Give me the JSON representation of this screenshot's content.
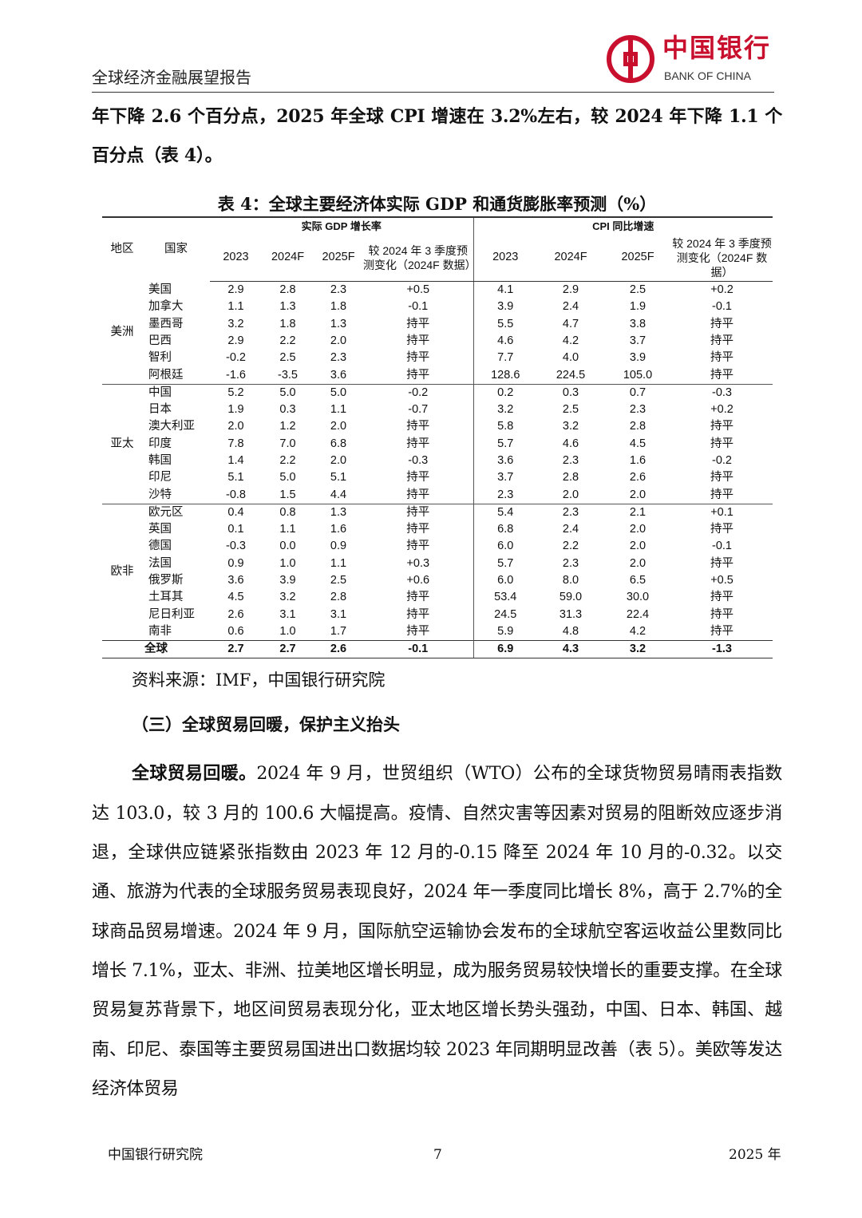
{
  "header": {
    "title": "全球经济金融展望报告",
    "logo_cn": "中国银行",
    "logo_en": "BANK OF CHINA",
    "brand_color": "#c8102e"
  },
  "intro_text": "年下降 2.6 个百分点，2025 年全球 CPI 增速在 3.2%左右，较 2024 年下降 1.1 个百分点（表 4）。",
  "table": {
    "caption": "表 4：全球主要经济体实际 GDP 和通货膨胀率预测（%）",
    "headers": {
      "region": "地区",
      "country": "国家",
      "gdp_group": "实际 GDP 增长率",
      "cpi_group": "CPI 同比增速",
      "y2023": "2023",
      "y2024": "2024F",
      "y2025": "2025F",
      "change": "较 2024 年 3 季度预测变化（2024F 数据）"
    },
    "groups": [
      {
        "region": "美洲",
        "rows": [
          [
            "美国",
            "2.9",
            "2.8",
            "2.3",
            "+0.5",
            "4.1",
            "2.9",
            "2.5",
            "+0.2"
          ],
          [
            "加拿大",
            "1.1",
            "1.3",
            "1.8",
            "-0.1",
            "3.9",
            "2.4",
            "1.9",
            "-0.1"
          ],
          [
            "墨西哥",
            "3.2",
            "1.8",
            "1.3",
            "持平",
            "5.5",
            "4.7",
            "3.8",
            "持平"
          ],
          [
            "巴西",
            "2.9",
            "2.2",
            "2.0",
            "持平",
            "4.6",
            "4.2",
            "3.7",
            "持平"
          ],
          [
            "智利",
            "-0.2",
            "2.5",
            "2.3",
            "持平",
            "7.7",
            "4.0",
            "3.9",
            "持平"
          ],
          [
            "阿根廷",
            "-1.6",
            "-3.5",
            "3.6",
            "持平",
            "128.6",
            "224.5",
            "105.0",
            "持平"
          ]
        ]
      },
      {
        "region": "亚太",
        "rows": [
          [
            "中国",
            "5.2",
            "5.0",
            "5.0",
            "-0.2",
            "0.2",
            "0.3",
            "0.7",
            "-0.3"
          ],
          [
            "日本",
            "1.9",
            "0.3",
            "1.1",
            "-0.7",
            "3.2",
            "2.5",
            "2.3",
            "+0.2"
          ],
          [
            "澳大利亚",
            "2.0",
            "1.2",
            "2.0",
            "持平",
            "5.8",
            "3.2",
            "2.8",
            "持平"
          ],
          [
            "印度",
            "7.8",
            "7.0",
            "6.8",
            "持平",
            "5.7",
            "4.6",
            "4.5",
            "持平"
          ],
          [
            "韩国",
            "1.4",
            "2.2",
            "2.0",
            "-0.3",
            "3.6",
            "2.3",
            "1.6",
            "-0.2"
          ],
          [
            "印尼",
            "5.1",
            "5.0",
            "5.1",
            "持平",
            "3.7",
            "2.8",
            "2.6",
            "持平"
          ],
          [
            "沙特",
            "-0.8",
            "1.5",
            "4.4",
            "持平",
            "2.3",
            "2.0",
            "2.0",
            "持平"
          ]
        ]
      },
      {
        "region": "欧非",
        "rows": [
          [
            "欧元区",
            "0.4",
            "0.8",
            "1.3",
            "持平",
            "5.4",
            "2.3",
            "2.1",
            "+0.1"
          ],
          [
            "英国",
            "0.1",
            "1.1",
            "1.6",
            "持平",
            "6.8",
            "2.4",
            "2.0",
            "持平"
          ],
          [
            "德国",
            "-0.3",
            "0.0",
            "0.9",
            "持平",
            "6.0",
            "2.2",
            "2.0",
            "-0.1"
          ],
          [
            "法国",
            "0.9",
            "1.0",
            "1.1",
            "+0.3",
            "5.7",
            "2.3",
            "2.0",
            "持平"
          ],
          [
            "俄罗斯",
            "3.6",
            "3.9",
            "2.5",
            "+0.6",
            "6.0",
            "8.0",
            "6.5",
            "+0.5"
          ],
          [
            "土耳其",
            "4.5",
            "3.2",
            "2.8",
            "持平",
            "53.4",
            "59.0",
            "30.0",
            "持平"
          ],
          [
            "尼日利亚",
            "2.6",
            "3.1",
            "3.1",
            "持平",
            "24.5",
            "31.3",
            "22.4",
            "持平"
          ],
          [
            "南非",
            "0.6",
            "1.0",
            "1.7",
            "持平",
            "5.9",
            "4.8",
            "4.2",
            "持平"
          ]
        ]
      }
    ],
    "total": [
      "全球",
      "2.7",
      "2.7",
      "2.6",
      "-0.1",
      "6.9",
      "4.3",
      "3.2",
      "-1.3"
    ],
    "source": "资料来源：IMF，中国银行研究院"
  },
  "section_title": "（三）全球贸易回暖，保护主义抬头",
  "paragraph": {
    "lead": "全球贸易回暖。",
    "body": "2024 年 9 月，世贸组织（WTO）公布的全球货物贸易晴雨表指数达 103.0，较 3 月的 100.6 大幅提高。疫情、自然灾害等因素对贸易的阻断效应逐步消退，全球供应链紧张指数由 2023 年 12 月的-0.15 降至 2024 年 10 月的-0.32。以交通、旅游为代表的全球服务贸易表现良好，2024 年一季度同比增长 8%，高于 2.7%的全球商品贸易增速。2024 年 9 月，国际航空运输协会发布的全球航空客运收益公里数同比增长 7.1%，亚太、非洲、拉美地区增长明显，成为服务贸易较快增长的重要支撑。在全球贸易复苏背景下，地区间贸易表现分化，亚太地区增长势头强劲，中国、日本、韩国、越南、印尼、泰国等主要贸易国进出口数据均较 2023 年同期明显改善（表 5）。美欧等发达经济体贸易"
  },
  "footer": {
    "left": "中国银行研究院",
    "page": "7",
    "right": "2025 年"
  }
}
